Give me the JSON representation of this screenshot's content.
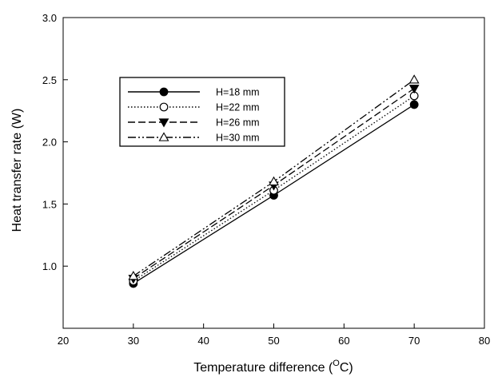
{
  "chart_data": {
    "type": "line",
    "title": "",
    "xlabel": "Temperature difference",
    "xlabel_unit": "(°C)",
    "ylabel": "Heat transfer rate (W)",
    "xlim": [
      20,
      80
    ],
    "ylim": [
      0.5,
      3.0
    ],
    "x_ticks": [
      "20",
      "30",
      "40",
      "50",
      "60",
      "70",
      "80"
    ],
    "y_ticks": [
      "1.0",
      "1.5",
      "2.0",
      "2.5",
      "3.0"
    ],
    "grid": false,
    "legend_position": "top-left",
    "x": [
      30,
      50,
      70
    ],
    "series": [
      {
        "name": "H=18 mm",
        "values": [
          0.86,
          1.57,
          2.3
        ],
        "marker": "filled-circle",
        "line": "solid"
      },
      {
        "name": "H=22 mm",
        "values": [
          0.88,
          1.61,
          2.37
        ],
        "marker": "open-circle",
        "line": "dotted"
      },
      {
        "name": "H=26 mm",
        "values": [
          0.9,
          1.65,
          2.43
        ],
        "marker": "filled-triangle-down",
        "line": "dashed"
      },
      {
        "name": "H=30 mm",
        "values": [
          0.92,
          1.68,
          2.5
        ],
        "marker": "open-triangle-up",
        "line": "dash-dot-dot"
      }
    ]
  }
}
